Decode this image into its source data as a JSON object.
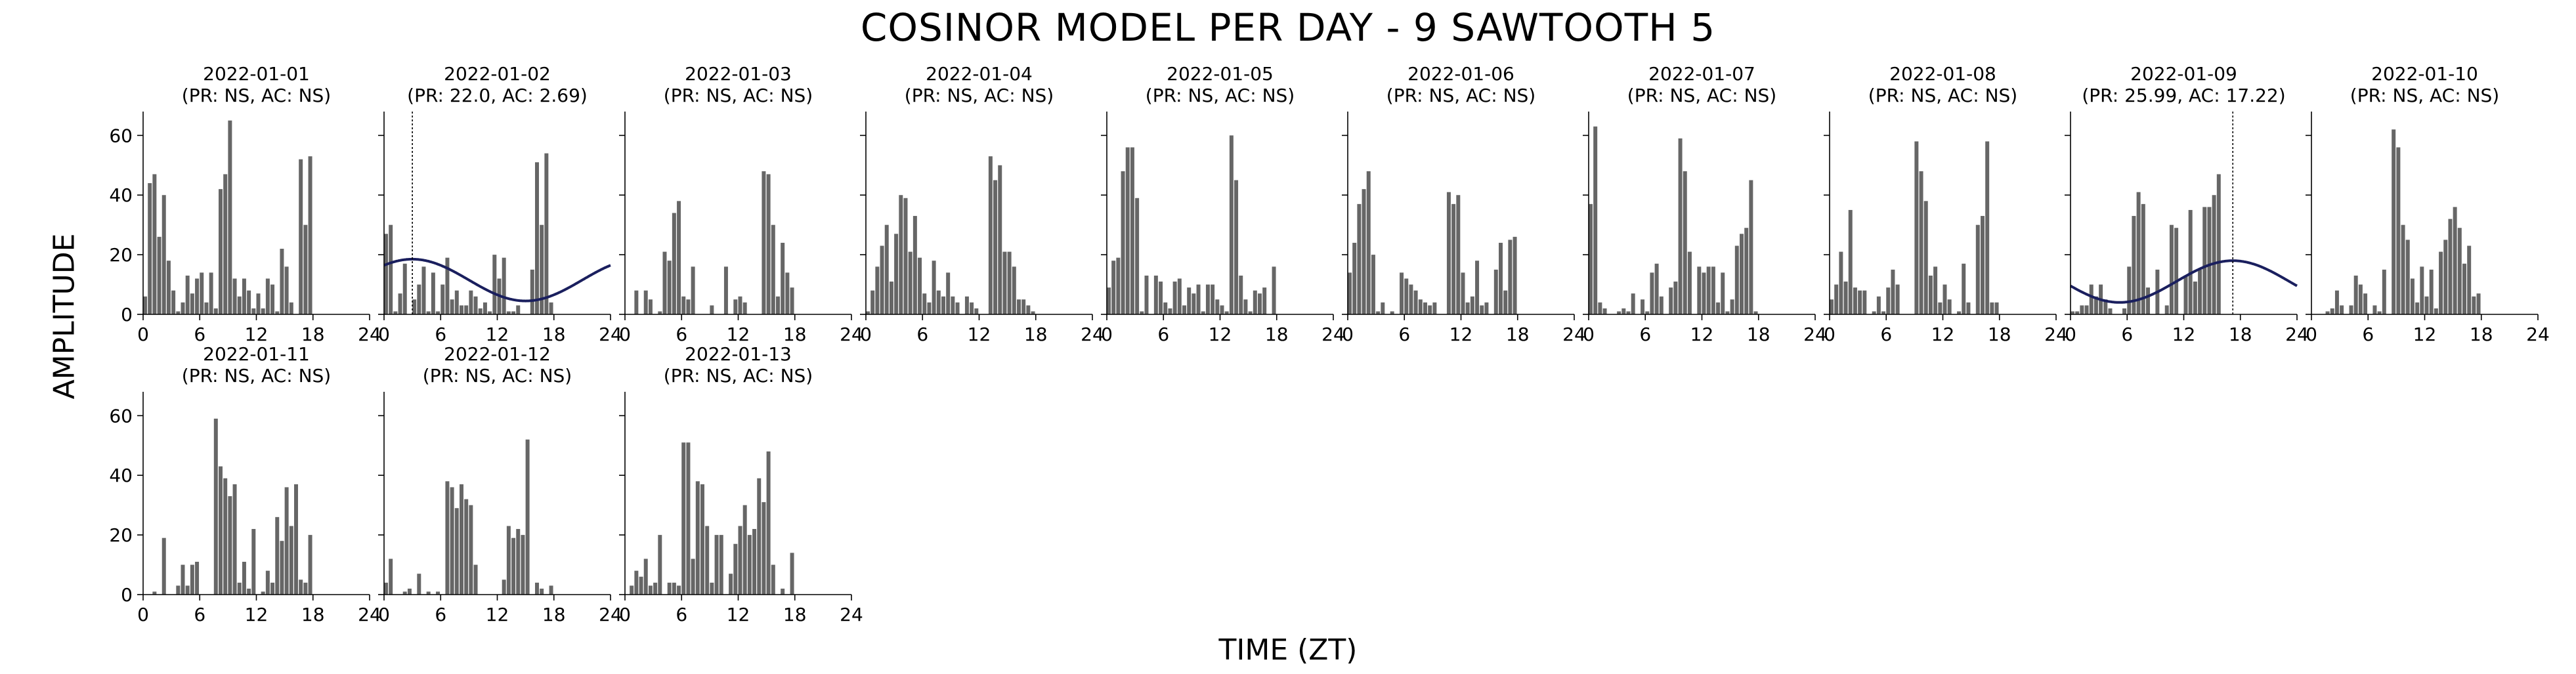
{
  "figure": {
    "title": "COSINOR MODEL PER DAY - 9 SAWTOOTH 5",
    "xlabel": "TIME (ZT)",
    "ylabel": "AMPLITUDE"
  },
  "colors": {
    "bar": "#666666",
    "fit": "#1a1f5e",
    "axis": "#000000",
    "acrophase_line": "#000000"
  },
  "chart_data": {
    "type": "bar",
    "xlim": [
      0,
      24
    ],
    "ylim": [
      0,
      68
    ],
    "xticks": [
      0,
      6,
      12,
      18,
      24
    ],
    "yticks": [
      0,
      20,
      40,
      60
    ],
    "bin_hours": 0.5,
    "grid": false,
    "legend": "none",
    "panels": [
      {
        "date": "2022-01-01",
        "subtitle": "(PR: NS, AC: NS)",
        "values": [
          6,
          44,
          47,
          26,
          40,
          18,
          8,
          1,
          4,
          13,
          7,
          12,
          14,
          4,
          14,
          2,
          42,
          47,
          65,
          12,
          6,
          12,
          8,
          2,
          7,
          2,
          12,
          10,
          1,
          22,
          16,
          4,
          0,
          52,
          30,
          53
        ]
      },
      {
        "date": "2022-01-02",
        "subtitle": "(PR: 22.0, AC: 2.69)",
        "fit": {
          "mesor": 11.5,
          "amplitude": 7,
          "acrophase_h": 3
        },
        "acrophase_line": 3,
        "values": [
          27,
          30,
          1,
          7,
          17,
          0,
          5,
          10,
          16,
          1,
          14,
          1,
          10,
          19,
          5,
          8,
          3,
          3,
          8,
          6,
          2,
          4,
          1,
          20,
          12,
          19,
          1,
          1,
          3,
          0,
          0,
          15,
          51,
          30,
          54,
          4
        ]
      },
      {
        "date": "2022-01-03",
        "subtitle": "(PR: NS, AC: NS)",
        "values": [
          0,
          0,
          8,
          0,
          8,
          5,
          0,
          1,
          21,
          18,
          34,
          38,
          6,
          5,
          16,
          0,
          0,
          0,
          3,
          0,
          0,
          16,
          0,
          5,
          6,
          4,
          0,
          0,
          0,
          48,
          47,
          30,
          6,
          24,
          14,
          9
        ]
      },
      {
        "date": "2022-01-04",
        "subtitle": "(PR: NS, AC: NS)",
        "values": [
          1,
          8,
          16,
          23,
          30,
          11,
          27,
          40,
          39,
          21,
          33,
          19,
          7,
          4,
          18,
          8,
          6,
          14,
          6,
          4,
          0,
          6,
          4,
          2,
          0,
          0,
          53,
          45,
          50,
          21,
          21,
          16,
          5,
          5,
          3,
          1
        ]
      },
      {
        "date": "2022-01-05",
        "subtitle": "(PR: NS, AC: NS)",
        "values": [
          9,
          18,
          19,
          48,
          56,
          56,
          39,
          1,
          13,
          0,
          13,
          11,
          4,
          2,
          11,
          12,
          3,
          9,
          7,
          10,
          1,
          10,
          10,
          5,
          3,
          1,
          60,
          45,
          13,
          5,
          1,
          8,
          7,
          9,
          0,
          16
        ]
      },
      {
        "date": "2022-01-06",
        "subtitle": "(PR: NS, AC: NS)",
        "values": [
          14,
          24,
          37,
          42,
          48,
          20,
          1,
          4,
          0,
          1,
          0,
          14,
          12,
          10,
          8,
          5,
          4,
          3,
          4,
          0,
          0,
          41,
          37,
          40,
          14,
          4,
          6,
          18,
          3,
          4,
          0,
          15,
          24,
          8,
          25,
          26
        ]
      },
      {
        "date": "2022-01-07",
        "subtitle": "(PR: NS, AC: NS)",
        "values": [
          37,
          63,
          4,
          2,
          0,
          0,
          1,
          2,
          1,
          7,
          0,
          5,
          1,
          14,
          17,
          6,
          0,
          9,
          11,
          59,
          48,
          21,
          0,
          16,
          14,
          16,
          16,
          4,
          14,
          1,
          5,
          23,
          27,
          29,
          45,
          1
        ]
      },
      {
        "date": "2022-01-08",
        "subtitle": "(PR: NS, AC: NS)",
        "values": [
          5,
          10,
          21,
          11,
          35,
          9,
          8,
          8,
          0,
          1,
          6,
          1,
          9,
          15,
          10,
          0,
          0,
          0,
          58,
          48,
          38,
          13,
          16,
          4,
          10,
          5,
          0,
          1,
          17,
          4,
          0,
          30,
          33,
          58,
          4,
          4
        ]
      },
      {
        "date": "2022-01-09",
        "subtitle": "(PR: 25.99, AC: 17.22)",
        "fit": {
          "mesor": 11,
          "amplitude": 7,
          "acrophase_h": 17.2
        },
        "acrophase_line": 17.2,
        "values": [
          1,
          1,
          3,
          3,
          10,
          6,
          10,
          5,
          2,
          0,
          0,
          2,
          16,
          33,
          41,
          37,
          9,
          0,
          15,
          0,
          3,
          30,
          29,
          0,
          13,
          35,
          11,
          15,
          36,
          36,
          40,
          47,
          0,
          0,
          0,
          0
        ]
      },
      {
        "date": "2022-01-10",
        "subtitle": "(PR: NS, AC: NS)",
        "values": [
          0,
          0,
          0,
          1,
          2,
          8,
          3,
          0,
          3,
          13,
          10,
          7,
          0,
          3,
          1,
          15,
          0,
          62,
          56,
          30,
          25,
          12,
          4,
          16,
          6,
          15,
          2,
          21,
          25,
          32,
          36,
          29,
          17,
          23,
          6,
          7
        ]
      },
      {
        "date": "2022-01-11",
        "subtitle": "(PR: NS, AC: NS)",
        "values": [
          0,
          0,
          1,
          0,
          19,
          0,
          0,
          3,
          10,
          3,
          10,
          11,
          0,
          0,
          0,
          59,
          43,
          39,
          33,
          37,
          4,
          11,
          2,
          22,
          0,
          1,
          8,
          4,
          26,
          18,
          36,
          23,
          37,
          5,
          4,
          20
        ]
      },
      {
        "date": "2022-01-12",
        "subtitle": "(PR: NS, AC: NS)",
        "values": [
          4,
          12,
          0,
          0,
          1,
          2,
          0,
          7,
          0,
          1,
          0,
          1,
          0,
          38,
          36,
          29,
          37,
          32,
          30,
          10,
          0,
          0,
          0,
          0,
          0,
          5,
          23,
          19,
          22,
          20,
          52,
          0,
          4,
          2,
          0,
          3
        ]
      },
      {
        "date": "2022-01-13",
        "subtitle": "(PR: NS, AC: NS)",
        "values": [
          0,
          3,
          8,
          6,
          12,
          3,
          4,
          20,
          0,
          4,
          4,
          3,
          51,
          51,
          12,
          38,
          37,
          23,
          4,
          20,
          20,
          0,
          7,
          17,
          23,
          30,
          20,
          22,
          39,
          31,
          48,
          10,
          0,
          2,
          0,
          14
        ]
      }
    ]
  }
}
